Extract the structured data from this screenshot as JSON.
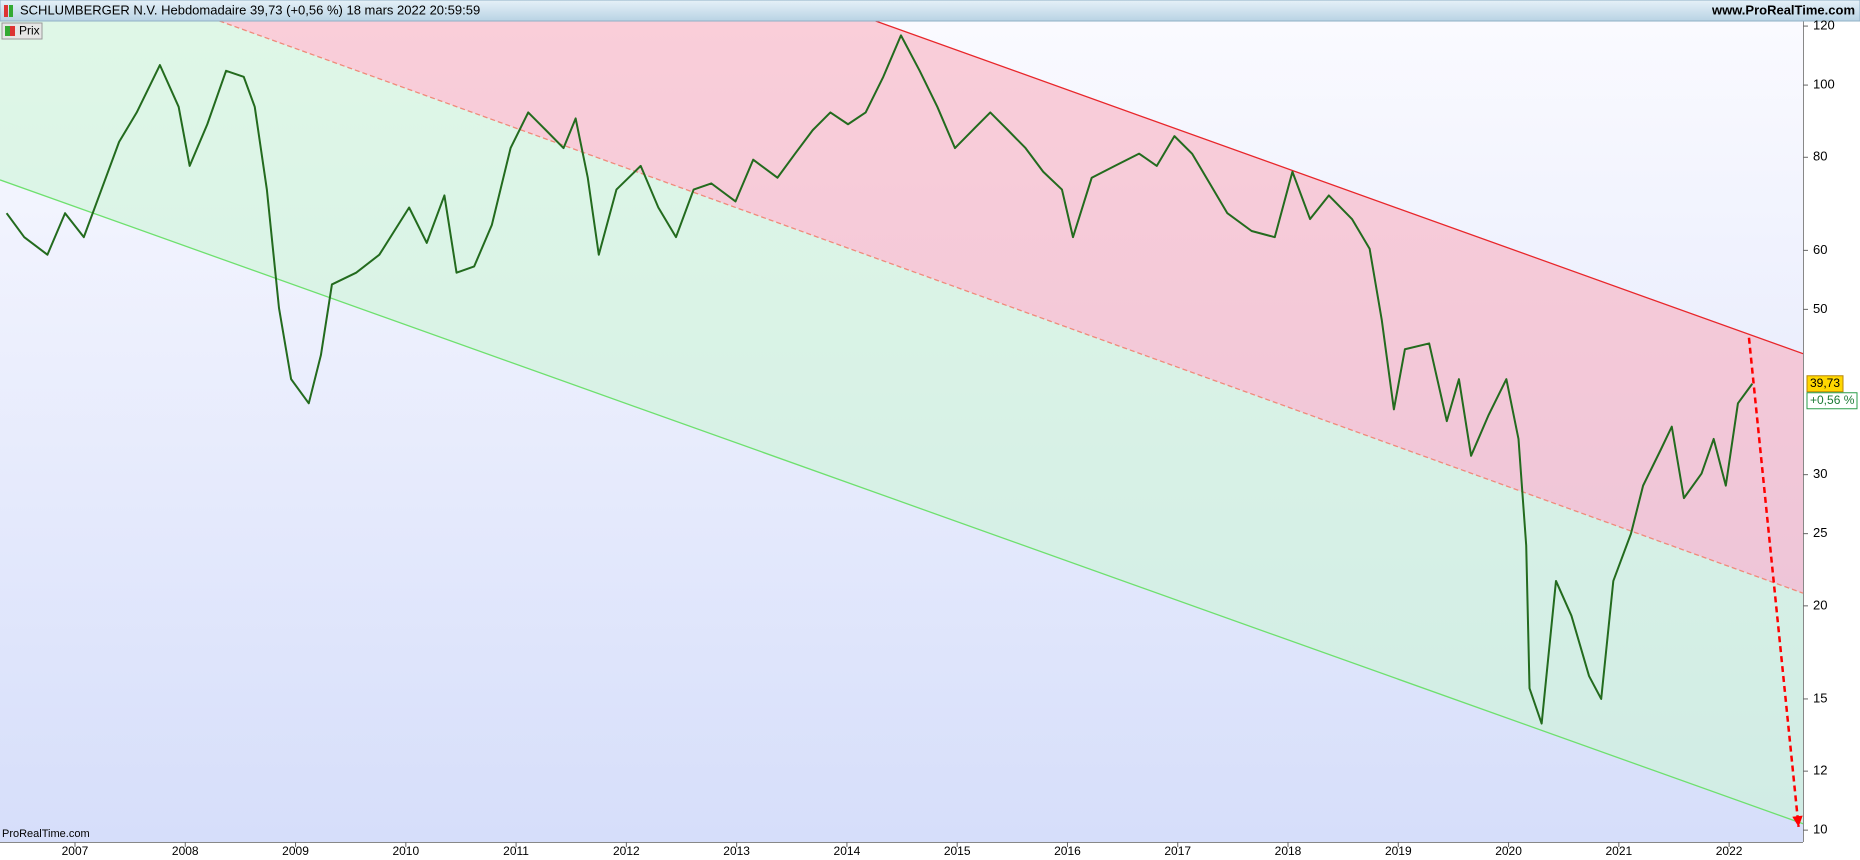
{
  "chart_data": {
    "type": "line",
    "title": "SCHLUMBERGER N.V. Hebdomadaire 39,73 (+0,56 %) 18 mars 2022 20:59:59",
    "site": "www.ProRealTime.com",
    "watermark": "ProRealTime.com",
    "last_label": "39,73",
    "change_label": "+0,56 %",
    "log_y": true,
    "xlim": [
      2006.32,
      2022.67
    ],
    "xticks": [
      2007,
      2008,
      2009,
      2010,
      2011,
      2012,
      2013,
      2014,
      2015,
      2016,
      2017,
      2018,
      2019,
      2020,
      2021,
      2022
    ],
    "ylim": [
      9.64,
      121.9
    ],
    "yticks": [
      10,
      12,
      15,
      20,
      25,
      30,
      50,
      60,
      80,
      100,
      120
    ],
    "series": [
      {
        "name": "Prix",
        "color": "#236b1e",
        "x": [
          2006.38,
          2006.54,
          2006.75,
          2006.91,
          2007.08,
          2007.24,
          2007.4,
          2007.56,
          2007.77,
          2007.94,
          2008.04,
          2008.2,
          2008.37,
          2008.53,
          2008.63,
          2008.74,
          2008.85,
          2008.96,
          2009.12,
          2009.23,
          2009.33,
          2009.55,
          2009.76,
          2010.03,
          2010.19,
          2010.35,
          2010.46,
          2010.62,
          2010.78,
          2010.95,
          2011.11,
          2011.27,
          2011.43,
          2011.54,
          2011.65,
          2011.75,
          2011.91,
          2012.13,
          2012.29,
          2012.45,
          2012.61,
          2012.77,
          2012.99,
          2013.15,
          2013.37,
          2013.53,
          2013.69,
          2013.85,
          2014.01,
          2014.17,
          2014.33,
          2014.49,
          2014.66,
          2014.82,
          2014.98,
          2015.14,
          2015.3,
          2015.46,
          2015.62,
          2015.78,
          2015.95,
          2016.05,
          2016.22,
          2016.43,
          2016.65,
          2016.81,
          2016.97,
          2017.13,
          2017.29,
          2017.45,
          2017.67,
          2017.88,
          2018.04,
          2018.2,
          2018.37,
          2018.58,
          2018.74,
          2018.85,
          2018.96,
          2019.06,
          2019.28,
          2019.44,
          2019.55,
          2019.66,
          2019.82,
          2019.98,
          2020.09,
          2020.16,
          2020.19,
          2020.3,
          2020.43,
          2020.57,
          2020.73,
          2020.84,
          2020.95,
          2021.11,
          2021.22,
          2021.38,
          2021.48,
          2021.59,
          2021.75,
          2021.86,
          2021.97,
          2022.08,
          2022.21
        ],
        "values": [
          67.3,
          62.5,
          59.2,
          67.3,
          62.5,
          72.4,
          83.9,
          91.9,
          106.4,
          93.5,
          77.9,
          88.6,
          104.5,
          102.6,
          93.5,
          72.4,
          50.2,
          40.3,
          37.4,
          43.4,
          54.0,
          56.0,
          59.2,
          68.5,
          61.4,
          71.1,
          56.0,
          57.1,
          64.9,
          82.3,
          91.9,
          87.0,
          82.3,
          90.2,
          75.1,
          59.2,
          72.4,
          77.9,
          68.5,
          62.5,
          72.4,
          73.8,
          69.8,
          79.4,
          75.1,
          80.9,
          87.0,
          91.9,
          88.6,
          91.9,
          102.6,
          116.6,
          104.5,
          93.5,
          82.3,
          87.0,
          91.9,
          87.0,
          82.3,
          76.5,
          72.4,
          62.5,
          75.1,
          77.9,
          80.9,
          77.9,
          85.4,
          80.9,
          73.8,
          67.3,
          63.7,
          62.5,
          76.5,
          66.1,
          71.1,
          66.1,
          60.3,
          48.4,
          36.7,
          44.2,
          45.0,
          35.4,
          40.3,
          31.8,
          36.1,
          40.3,
          33.5,
          24.1,
          15.5,
          13.9,
          21.6,
          19.4,
          16.1,
          15.0,
          21.6,
          25.0,
          29.0,
          32.4,
          34.8,
          27.9,
          30.1,
          33.5,
          29.0,
          37.4,
          39.73
        ]
      }
    ],
    "lines": [
      {
        "color": "#e8262a",
        "x": [
          2014.26,
          2022.67
        ],
        "y": [
          121.9,
          43.6
        ]
      },
      {
        "color": "#f08a7a",
        "dashed": true,
        "x": [
          2008.31,
          2022.67
        ],
        "y": [
          121.9,
          20.8
        ]
      },
      {
        "color": "#6ee06e",
        "x": [
          2006.32,
          2022.67
        ],
        "y": [
          74.6,
          10.2
        ]
      }
    ],
    "arrow": {
      "color": "#ff0000",
      "x": [
        2022.18,
        2022.63
      ],
      "y": [
        45.8,
        10.1
      ]
    }
  }
}
